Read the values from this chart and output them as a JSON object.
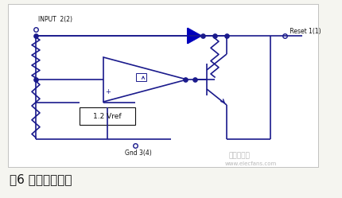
{
  "bg_color": "#f5f5f0",
  "line_color": "#1a1a8c",
  "black": "#111111",
  "blue_dark": "#0000aa",
  "title_text": "图6 内部结构框图",
  "title_fontsize": 11,
  "title_color": "#111111",
  "input_label": "INPUT  2(2)",
  "gnd_label": "Gnd 3(4)",
  "reset_label": " Reset 1(1)",
  "vref_label": "1.2 Vref",
  "watermark_line1": "电子发烧友",
  "watermark_line2": "www.elecfans.com",
  "fig_width": 4.31,
  "fig_height": 2.49,
  "dpi": 100
}
